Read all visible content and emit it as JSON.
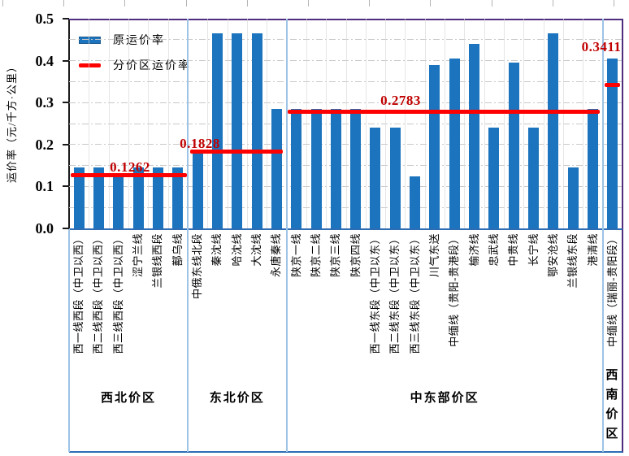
{
  "y_axis": {
    "title": "运价率（元/千方·公里）",
    "ticks": [
      "0.5",
      "0.4",
      "0.3",
      "0.2",
      "0.1",
      "0.0"
    ]
  },
  "legend": [
    {
      "label": "原运价率",
      "marker": "bar-swatch"
    },
    {
      "label": "分价区运价率",
      "marker": "line-swatch"
    }
  ],
  "colors": {
    "bar": "#1b74bd",
    "zone_line": "#ff0000",
    "annotation_text": "#c00000",
    "border_purple": "#4f2d7f",
    "axis_blue": "#2e6db4",
    "divider_light_blue": "#9dc3e6",
    "gridline_gray": "#c9c9c9"
  },
  "chart_data": {
    "type": "bar",
    "title": "",
    "ylabel": "运价率（元/千方·公里）",
    "ylim": [
      0,
      0.5
    ],
    "ytick_step": 0.1,
    "grid": "horizontal dash-dot every 0.05",
    "legend_entries": [
      "原运价率",
      "分价区运价率"
    ],
    "series_note": "blue bars = original tariff rate per pipeline; red segments = unified zone tariff rate",
    "groups": [
      {
        "name": "西北价区",
        "zone_rate": 0.1262,
        "zone_rate_label": "0.1262",
        "categories": [
          "西一线西段（中卫以西）",
          "西二线西段（中卫以西）",
          "西三线西段（中卫以西）",
          "涩宁兰线",
          "兰银线西段",
          "鄯乌线"
        ],
        "values": [
          0.145,
          0.145,
          0.126,
          0.145,
          0.145,
          0.145
        ]
      },
      {
        "name": "东北价区",
        "zone_rate": 0.1828,
        "zone_rate_label": "0.1828",
        "categories": [
          "中俄东线北段",
          "秦沈线",
          "哈沈线",
          "大沈线",
          "永唐秦线"
        ],
        "values": [
          0.183,
          0.465,
          0.465,
          0.465,
          0.285
        ]
      },
      {
        "name": "中东部价区",
        "zone_rate": 0.2783,
        "zone_rate_label": "0.2783",
        "categories": [
          "陕京一线",
          "陕京二线",
          "陕京三线",
          "陕京四线",
          "西一线东段（中卫以东）",
          "西二线东段（中卫以东）",
          "西三线东段（中卫以东）",
          "川气东送",
          "中缅线（贵阳-贵港段）",
          "榆济线",
          "忠武线",
          "中贵线",
          "长宁线",
          "鄂安沧线",
          "兰银线东段",
          "港清线"
        ],
        "values": [
          0.285,
          0.285,
          0.285,
          0.285,
          0.24,
          0.24,
          0.124,
          0.39,
          0.405,
          0.44,
          0.24,
          0.395,
          0.24,
          0.465,
          0.145,
          0.285
        ]
      },
      {
        "name": "西南价区",
        "zone_rate": 0.3411,
        "zone_rate_label": "0.3411",
        "categories": [
          "中缅线（瑞丽-贵阳段）"
        ],
        "values": [
          0.405
        ]
      }
    ]
  }
}
